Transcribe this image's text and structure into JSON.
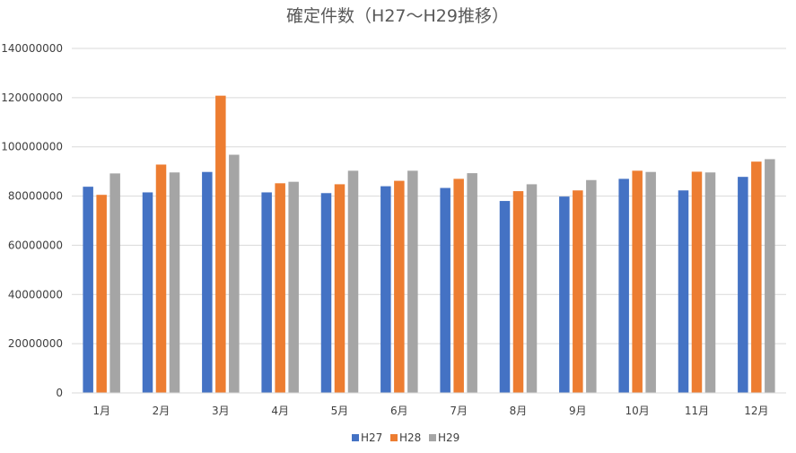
{
  "chart_data": {
    "type": "bar",
    "title": "確定件数（H27〜H29推移）",
    "xlabel": "",
    "ylabel": "",
    "categories": [
      "1月",
      "2月",
      "3月",
      "4月",
      "5月",
      "6月",
      "7月",
      "8月",
      "9月",
      "10月",
      "11月",
      "12月"
    ],
    "series": [
      {
        "name": "H27",
        "color": "#4472C4",
        "values": [
          83800000,
          81500000,
          89800000,
          81500000,
          81200000,
          84000000,
          83300000,
          78000000,
          79800000,
          87000000,
          82300000,
          87800000
        ]
      },
      {
        "name": "H28",
        "color": "#ED7D31",
        "values": [
          80500000,
          92800000,
          120800000,
          85200000,
          84800000,
          86200000,
          87000000,
          82000000,
          82300000,
          90300000,
          89900000,
          94000000
        ]
      },
      {
        "name": "H29",
        "color": "#A5A5A5",
        "values": [
          89200000,
          89600000,
          96800000,
          85800000,
          90300000,
          90300000,
          89300000,
          84800000,
          86500000,
          89800000,
          89600000,
          95000000
        ]
      }
    ],
    "ylim": [
      0,
      140000000
    ],
    "yticks": [
      0,
      20000000,
      40000000,
      60000000,
      80000000,
      100000000,
      120000000,
      140000000
    ],
    "grid": true,
    "legend": "bottom"
  }
}
